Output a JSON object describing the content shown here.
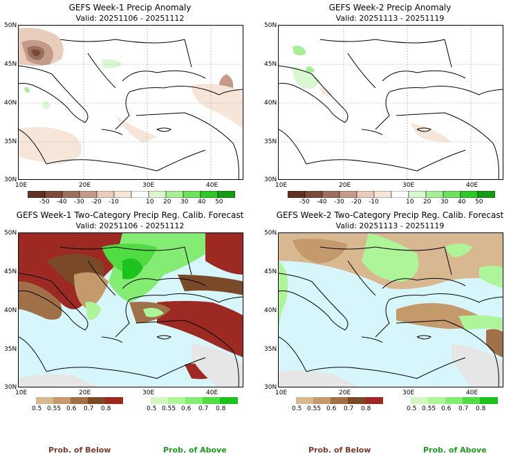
{
  "panels": {
    "wk1_anom": {
      "title": "GEFS Week-1 Precip Anomaly",
      "valid": "Valid: 20251106 - 20251112"
    },
    "wk2_anom": {
      "title": "GEFS Week-2 Precip Anomaly",
      "valid": "Valid: 20251113 - 20251119"
    },
    "wk1_cat": {
      "title": "GEFS Week-1 Two-Category Precip Reg. Calib. Forecast",
      "valid": "Valid: 20251106 - 20251112"
    },
    "wk2_cat": {
      "title": "GEFS Week-2 Two-Category Precip Reg. Calib. Forecast",
      "valid": "Valid: 20251113 - 20251119"
    }
  },
  "axes": {
    "lat_labels": [
      "50N",
      "45N",
      "40N",
      "35N",
      "30N"
    ],
    "lon_labels": [
      "10E",
      "20E",
      "30E",
      "40E"
    ]
  },
  "anomaly_colorbar": {
    "labels": [
      "-50",
      "-40",
      "-30",
      "-20",
      "-10",
      "10",
      "20",
      "30",
      "40",
      "50"
    ],
    "colors": [
      "#5e3325",
      "#7d4a3a",
      "#9c7060",
      "#c49a8a",
      "#e8cdbd",
      "#f6e6da",
      "#ffffff",
      "#d9f7d0",
      "#a8ee98",
      "#6ee05c",
      "#2fc82a",
      "#149a14"
    ]
  },
  "category_colorbar": {
    "below_labels": [
      "0.5",
      "0.55",
      "0.6",
      "0.7",
      "0.8"
    ],
    "above_labels": [
      "0.5",
      "0.55",
      "0.6",
      "0.7",
      "0.8"
    ],
    "below_colors": [
      "#d8b890",
      "#c49a6c",
      "#a07048",
      "#7a4a28",
      "#9c2a22"
    ],
    "above_colors": [
      "#d2f7c0",
      "#aef59a",
      "#84ec72",
      "#52dc44",
      "#1ec21e"
    ]
  },
  "footer": {
    "below": "Prob. of Below",
    "above": "Prob. of Above"
  },
  "colors": {
    "sea": "#d7f6fb",
    "gray": "#e6e6e6",
    "below_text": "#7a3a2a",
    "above_text": "#1e9a1e"
  }
}
